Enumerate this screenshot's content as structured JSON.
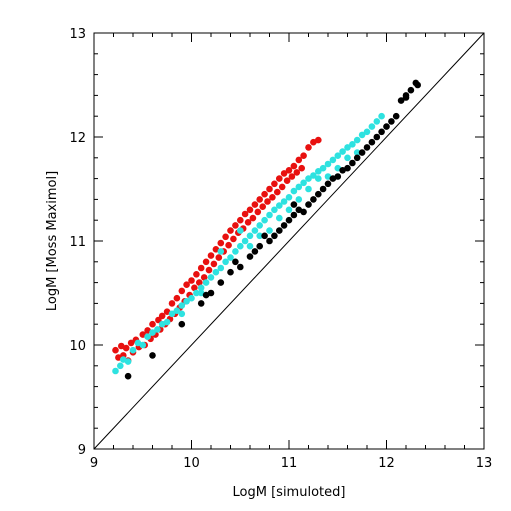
{
  "chart_data": {
    "type": "scatter",
    "title": "",
    "xlabel": "LogM [simuloted]",
    "ylabel": "LogM [Moss Maximol]",
    "xlim": [
      9,
      13
    ],
    "ylim": [
      9,
      13
    ],
    "xticks": [
      "9",
      "10",
      "11",
      "12",
      "13"
    ],
    "yticks": [
      "9",
      "10",
      "11",
      "12",
      "13"
    ],
    "grid": false,
    "reference_line": {
      "x": [
        9,
        13
      ],
      "y": [
        9,
        13
      ]
    },
    "series": [
      {
        "color": "#e8100f",
        "points": [
          [
            9.22,
            9.95
          ],
          [
            9.25,
            9.88
          ],
          [
            9.28,
            9.99
          ],
          [
            9.3,
            9.9
          ],
          [
            9.33,
            9.97
          ],
          [
            9.35,
            9.85
          ],
          [
            9.38,
            10.02
          ],
          [
            9.4,
            9.93
          ],
          [
            9.43,
            10.05
          ],
          [
            9.46,
            9.98
          ],
          [
            9.5,
            10.1
          ],
          [
            9.52,
            10.0
          ],
          [
            9.55,
            10.14
          ],
          [
            9.58,
            10.06
          ],
          [
            9.6,
            10.2
          ],
          [
            9.63,
            10.1
          ],
          [
            9.66,
            10.24
          ],
          [
            9.68,
            10.15
          ],
          [
            9.7,
            10.28
          ],
          [
            9.73,
            10.2
          ],
          [
            9.75,
            10.32
          ],
          [
            9.78,
            10.25
          ],
          [
            9.8,
            10.4
          ],
          [
            9.83,
            10.3
          ],
          [
            9.85,
            10.45
          ],
          [
            9.88,
            10.36
          ],
          [
            9.9,
            10.52
          ],
          [
            9.93,
            10.42
          ],
          [
            9.95,
            10.58
          ],
          [
            9.98,
            10.48
          ],
          [
            10.0,
            10.62
          ],
          [
            10.03,
            10.55
          ],
          [
            10.05,
            10.68
          ],
          [
            10.08,
            10.6
          ],
          [
            10.1,
            10.74
          ],
          [
            10.13,
            10.65
          ],
          [
            10.15,
            10.8
          ],
          [
            10.18,
            10.72
          ],
          [
            10.2,
            10.86
          ],
          [
            10.23,
            10.78
          ],
          [
            10.25,
            10.92
          ],
          [
            10.28,
            10.84
          ],
          [
            10.3,
            10.98
          ],
          [
            10.33,
            10.9
          ],
          [
            10.35,
            11.04
          ],
          [
            10.38,
            10.96
          ],
          [
            10.4,
            11.1
          ],
          [
            10.43,
            11.02
          ],
          [
            10.45,
            11.15
          ],
          [
            10.48,
            11.08
          ],
          [
            10.5,
            11.2
          ],
          [
            10.53,
            11.12
          ],
          [
            10.55,
            11.26
          ],
          [
            10.58,
            11.18
          ],
          [
            10.6,
            11.3
          ],
          [
            10.63,
            11.22
          ],
          [
            10.65,
            11.35
          ],
          [
            10.68,
            11.28
          ],
          [
            10.7,
            11.4
          ],
          [
            10.73,
            11.33
          ],
          [
            10.75,
            11.45
          ],
          [
            10.78,
            11.38
          ],
          [
            10.8,
            11.5
          ],
          [
            10.83,
            11.42
          ],
          [
            10.85,
            11.55
          ],
          [
            10.88,
            11.47
          ],
          [
            10.9,
            11.6
          ],
          [
            10.93,
            11.52
          ],
          [
            10.95,
            11.65
          ],
          [
            10.98,
            11.58
          ],
          [
            11.0,
            11.68
          ],
          [
            11.03,
            11.62
          ],
          [
            11.05,
            11.72
          ],
          [
            11.08,
            11.66
          ],
          [
            11.1,
            11.78
          ],
          [
            11.13,
            11.7
          ],
          [
            11.15,
            11.82
          ],
          [
            11.2,
            11.9
          ],
          [
            11.25,
            11.95
          ],
          [
            11.3,
            11.97
          ]
        ]
      },
      {
        "color": "#2ee2e0",
        "points": [
          [
            9.22,
            9.75
          ],
          [
            9.27,
            9.8
          ],
          [
            9.3,
            9.86
          ],
          [
            9.35,
            9.84
          ],
          [
            9.4,
            9.95
          ],
          [
            9.45,
            10.02
          ],
          [
            9.5,
            10.0
          ],
          [
            9.55,
            10.08
          ],
          [
            9.6,
            10.12
          ],
          [
            9.65,
            10.15
          ],
          [
            9.7,
            10.2
          ],
          [
            9.75,
            10.22
          ],
          [
            9.8,
            10.3
          ],
          [
            9.85,
            10.33
          ],
          [
            9.9,
            10.38
          ],
          [
            9.95,
            10.42
          ],
          [
            10.0,
            10.45
          ],
          [
            10.05,
            10.5
          ],
          [
            10.1,
            10.55
          ],
          [
            10.15,
            10.6
          ],
          [
            10.2,
            10.65
          ],
          [
            10.25,
            10.7
          ],
          [
            10.3,
            10.74
          ],
          [
            10.35,
            10.8
          ],
          [
            10.4,
            10.84
          ],
          [
            10.45,
            10.9
          ],
          [
            10.5,
            10.95
          ],
          [
            10.55,
            11.0
          ],
          [
            10.6,
            11.05
          ],
          [
            10.65,
            11.1
          ],
          [
            10.7,
            11.15
          ],
          [
            10.75,
            11.2
          ],
          [
            10.8,
            11.25
          ],
          [
            10.85,
            11.3
          ],
          [
            10.9,
            11.34
          ],
          [
            10.95,
            11.38
          ],
          [
            11.0,
            11.42
          ],
          [
            11.05,
            11.48
          ],
          [
            11.1,
            11.52
          ],
          [
            11.15,
            11.56
          ],
          [
            11.2,
            11.6
          ],
          [
            11.25,
            11.63
          ],
          [
            11.3,
            11.67
          ],
          [
            11.35,
            11.7
          ],
          [
            11.4,
            11.74
          ],
          [
            11.45,
            11.78
          ],
          [
            11.5,
            11.82
          ],
          [
            11.55,
            11.86
          ],
          [
            11.6,
            11.9
          ],
          [
            11.65,
            11.93
          ],
          [
            11.7,
            11.97
          ],
          [
            11.75,
            12.02
          ],
          [
            11.8,
            12.05
          ],
          [
            11.85,
            12.1
          ],
          [
            11.9,
            12.15
          ],
          [
            11.95,
            12.2
          ],
          [
            10.3,
            10.9
          ],
          [
            10.5,
            11.1
          ],
          [
            10.7,
            11.05
          ],
          [
            10.9,
            11.22
          ],
          [
            11.1,
            11.4
          ],
          [
            11.3,
            11.6
          ],
          [
            11.5,
            11.7
          ],
          [
            10.1,
            10.5
          ],
          [
            9.9,
            10.3
          ],
          [
            10.6,
            10.95
          ],
          [
            10.8,
            11.1
          ],
          [
            11.0,
            11.3
          ],
          [
            11.2,
            11.5
          ],
          [
            11.4,
            11.62
          ],
          [
            11.6,
            11.8
          ],
          [
            11.7,
            11.85
          ]
        ]
      },
      {
        "color": "#000000",
        "points": [
          [
            9.35,
            9.7
          ],
          [
            9.6,
            9.9
          ],
          [
            9.9,
            10.2
          ],
          [
            10.1,
            10.4
          ],
          [
            10.15,
            10.48
          ],
          [
            10.2,
            10.5
          ],
          [
            10.3,
            10.6
          ],
          [
            10.4,
            10.7
          ],
          [
            10.5,
            10.75
          ],
          [
            10.6,
            10.85
          ],
          [
            10.65,
            10.9
          ],
          [
            10.7,
            10.95
          ],
          [
            10.8,
            11.0
          ],
          [
            10.85,
            11.05
          ],
          [
            10.9,
            11.1
          ],
          [
            10.95,
            11.15
          ],
          [
            11.0,
            11.2
          ],
          [
            11.05,
            11.25
          ],
          [
            11.1,
            11.3
          ],
          [
            11.15,
            11.28
          ],
          [
            11.2,
            11.35
          ],
          [
            11.25,
            11.4
          ],
          [
            11.3,
            11.45
          ],
          [
            11.35,
            11.5
          ],
          [
            11.4,
            11.55
          ],
          [
            11.45,
            11.6
          ],
          [
            11.5,
            11.62
          ],
          [
            11.55,
            11.68
          ],
          [
            11.6,
            11.7
          ],
          [
            11.65,
            11.75
          ],
          [
            11.7,
            11.8
          ],
          [
            11.75,
            11.85
          ],
          [
            11.8,
            11.9
          ],
          [
            11.85,
            11.95
          ],
          [
            11.9,
            12.0
          ],
          [
            11.95,
            12.05
          ],
          [
            12.0,
            12.1
          ],
          [
            12.05,
            12.15
          ],
          [
            12.1,
            12.2
          ],
          [
            12.15,
            12.35
          ],
          [
            12.2,
            12.38
          ],
          [
            12.25,
            12.45
          ],
          [
            12.3,
            12.52
          ],
          [
            12.32,
            12.5
          ],
          [
            12.2,
            12.4
          ],
          [
            10.45,
            10.8
          ],
          [
            10.75,
            11.05
          ],
          [
            11.05,
            11.35
          ]
        ]
      }
    ]
  }
}
